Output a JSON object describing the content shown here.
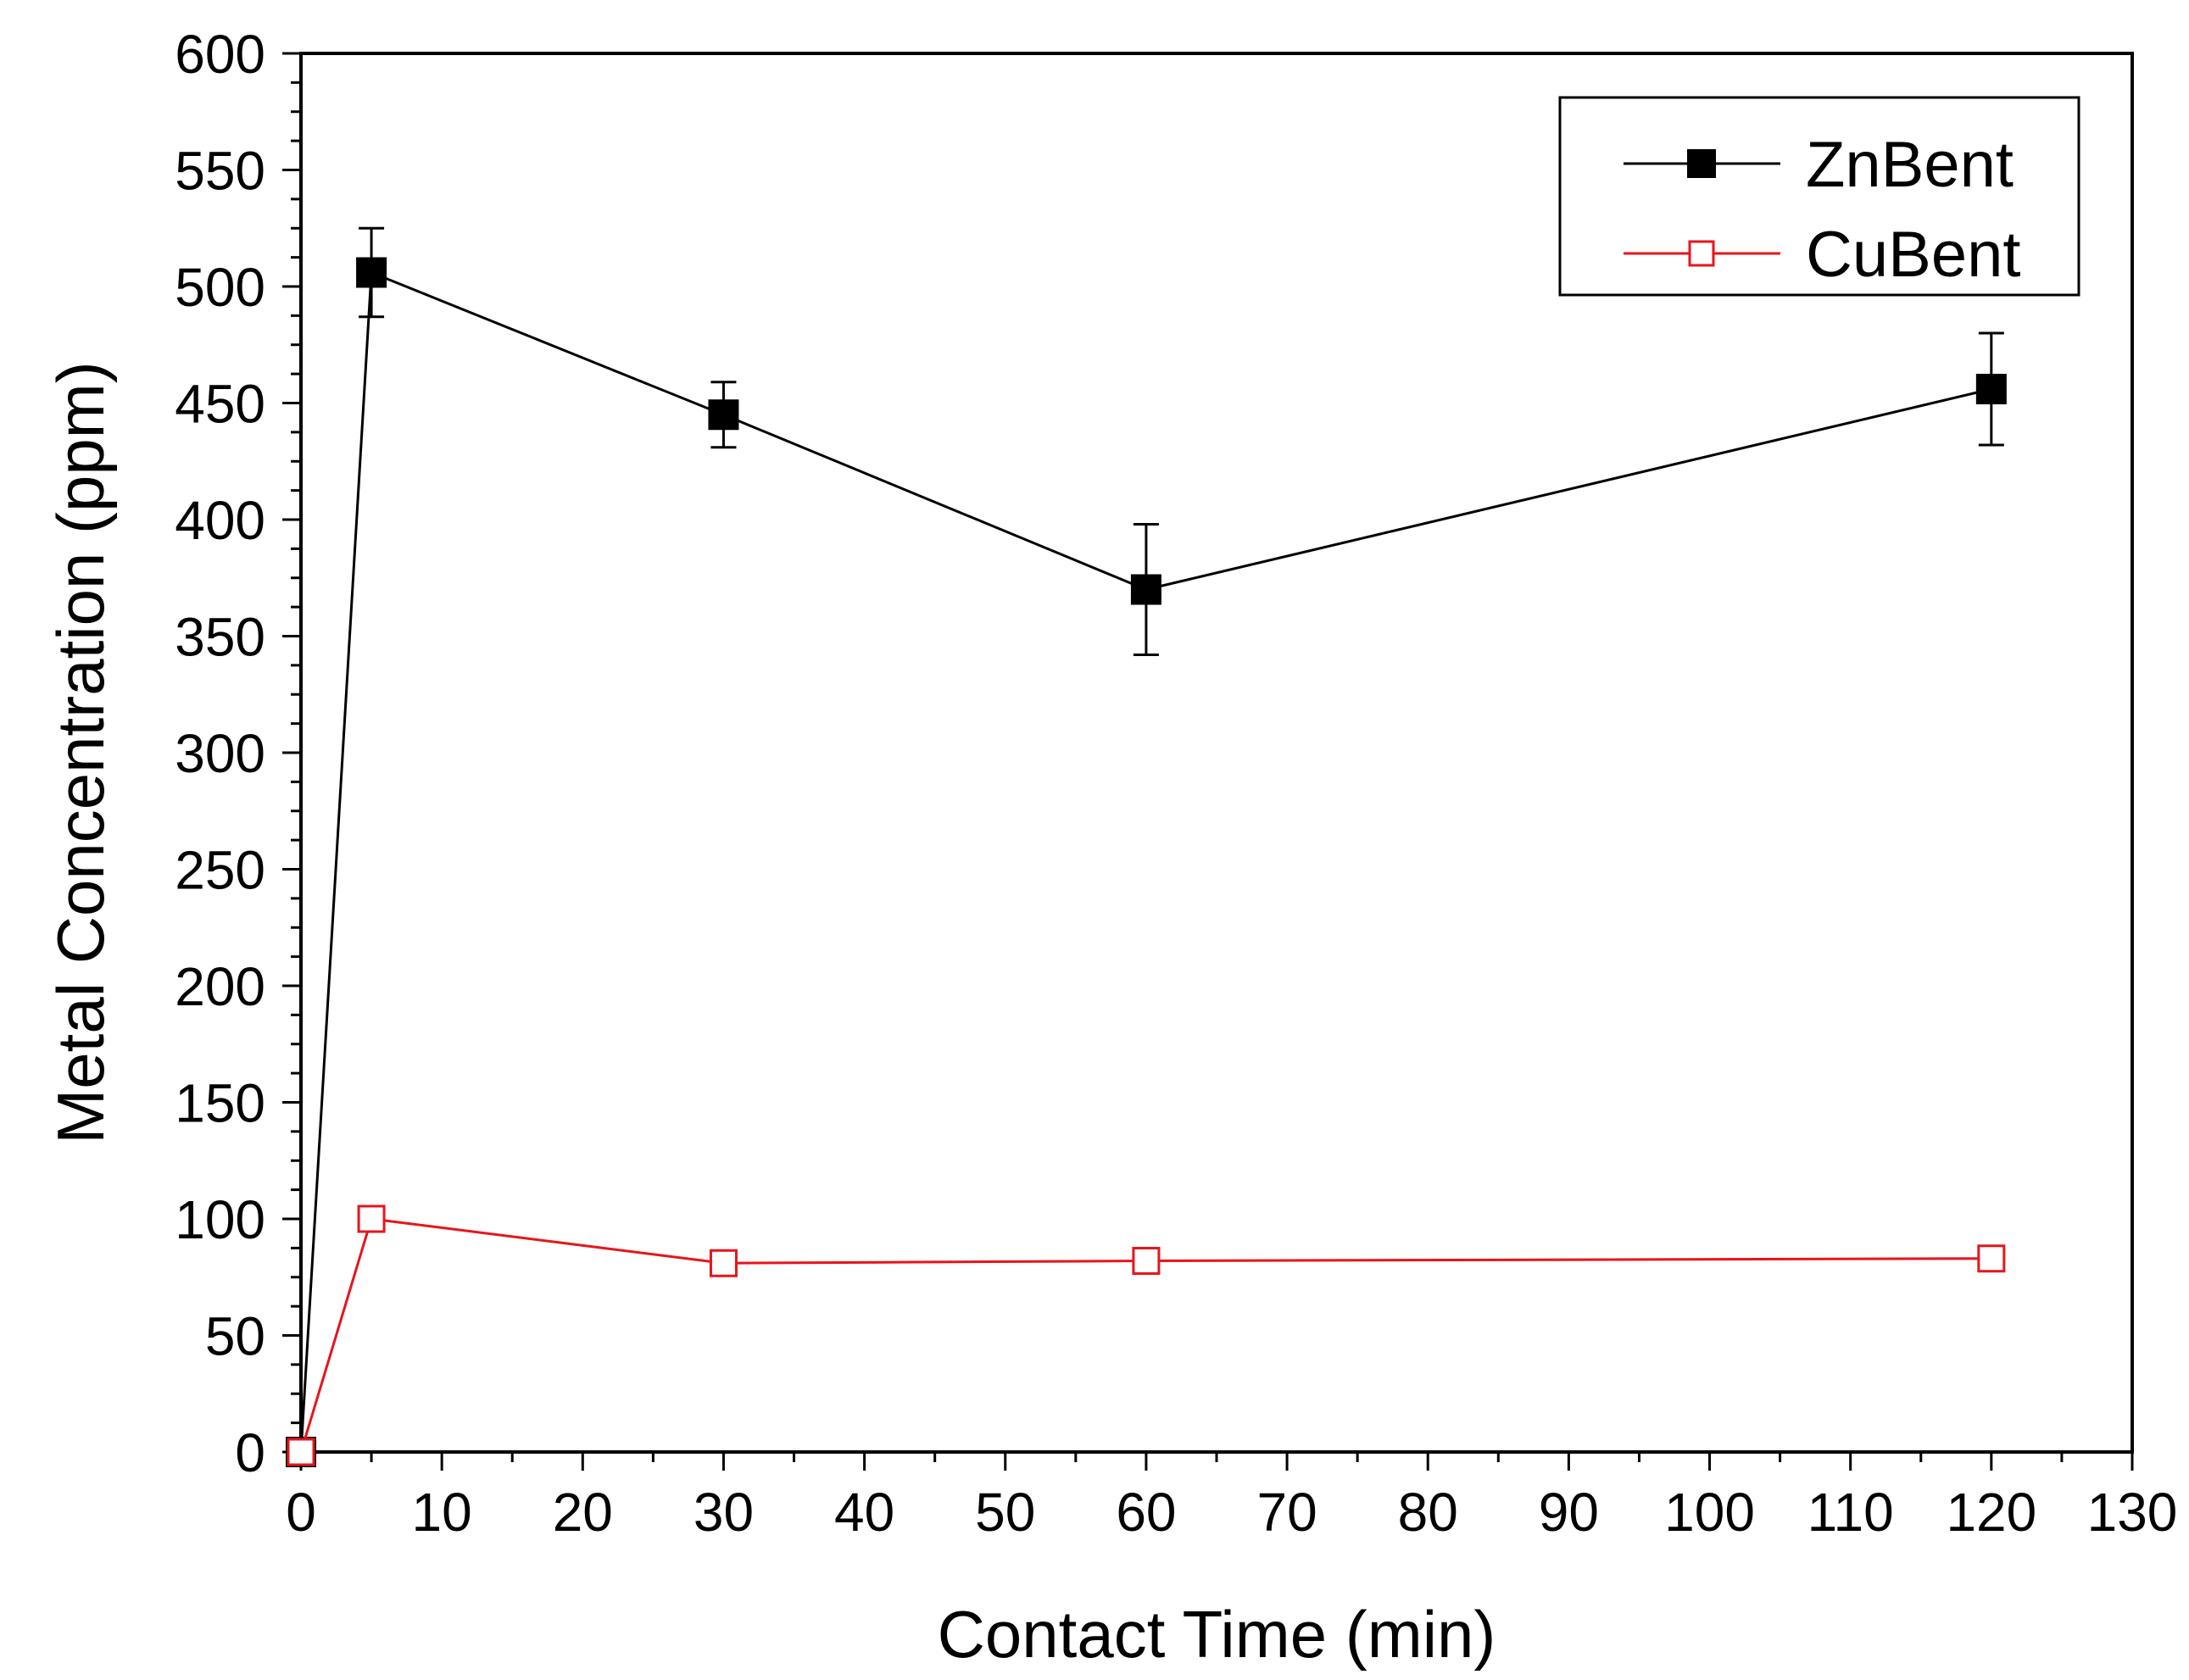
{
  "chart_data": {
    "type": "line",
    "title": "",
    "xlabel": "Contact Time (min)",
    "ylabel": "Metal Concentration (ppm)",
    "xlim": [
      0,
      130
    ],
    "ylim": [
      0,
      600
    ],
    "x_major_ticks": [
      0,
      10,
      20,
      30,
      40,
      50,
      60,
      70,
      80,
      90,
      100,
      110,
      120,
      130
    ],
    "y_major_ticks": [
      0,
      50,
      100,
      150,
      200,
      250,
      300,
      350,
      400,
      450,
      500,
      550,
      600
    ],
    "x_tick_labels": [
      "0",
      "10",
      "20",
      "30",
      "40",
      "50",
      "60",
      "70",
      "80",
      "90",
      "100",
      "110",
      "120",
      "130"
    ],
    "y_tick_labels": [
      "0",
      "50",
      "100",
      "150",
      "200",
      "250",
      "300",
      "350",
      "400",
      "450",
      "500",
      "550",
      "600"
    ],
    "grid": false,
    "legend_position": "top-right",
    "series": [
      {
        "name": "ZnBent",
        "color": "#000000",
        "marker": "filled-square",
        "x": [
          0,
          5,
          30,
          60,
          120
        ],
        "values": [
          0,
          506,
          445,
          370,
          456
        ],
        "error": [
          0,
          19,
          14,
          28,
          24
        ]
      },
      {
        "name": "CuBent",
        "color": "#e8141b",
        "marker": "open-square",
        "x": [
          0,
          5,
          30,
          60,
          120
        ],
        "values": [
          0,
          100,
          81,
          82,
          83
        ],
        "error": [
          0,
          3,
          3,
          3,
          3
        ]
      }
    ]
  }
}
